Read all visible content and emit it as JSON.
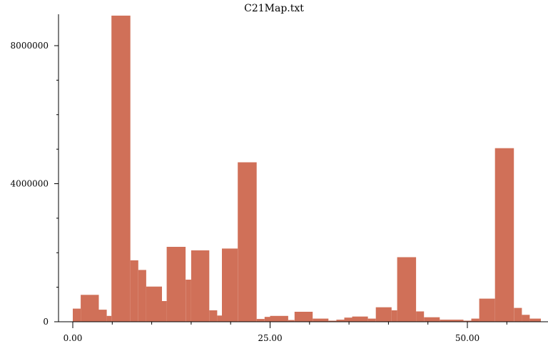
{
  "chart_data": {
    "type": "bar",
    "title": "C21Map.txt",
    "xlabel": "",
    "ylabel": "",
    "xlim": [
      -1,
      59
    ],
    "ylim": [
      0,
      8900000
    ],
    "bar_color": "#d07058",
    "grid": false,
    "x_ticks": [
      {
        "value": 0,
        "label": "0.00"
      },
      {
        "value": 25,
        "label": "25.00"
      },
      {
        "value": 50,
        "label": "50.00"
      }
    ],
    "x_minor_ticks": [
      5,
      10,
      15,
      20,
      30,
      35,
      40,
      45,
      55
    ],
    "y_ticks": [
      {
        "value": 0,
        "label": "0"
      },
      {
        "value": 4000000,
        "label": "4000000"
      },
      {
        "value": 8000000,
        "label": "8000000"
      }
    ],
    "y_minor_ticks": [
      1000000,
      2000000,
      3000000,
      5000000,
      6000000,
      7000000
    ],
    "bars": [
      {
        "x0": 0,
        "x1": 1,
        "value": 380000
      },
      {
        "x0": 1,
        "x1": 3.3,
        "value": 780000
      },
      {
        "x0": 3.3,
        "x1": 4.3,
        "value": 350000
      },
      {
        "x0": 4.3,
        "x1": 4.9,
        "value": 170000
      },
      {
        "x0": 4.9,
        "x1": 7.3,
        "value": 8870000
      },
      {
        "x0": 7.3,
        "x1": 8.3,
        "value": 1780000
      },
      {
        "x0": 8.3,
        "x1": 9.3,
        "value": 1500000
      },
      {
        "x0": 9.3,
        "x1": 11.3,
        "value": 1020000
      },
      {
        "x0": 11.3,
        "x1": 11.9,
        "value": 600000
      },
      {
        "x0": 11.9,
        "x1": 14.3,
        "value": 2170000
      },
      {
        "x0": 14.3,
        "x1": 15.0,
        "value": 1220000
      },
      {
        "x0": 15.0,
        "x1": 17.3,
        "value": 2070000
      },
      {
        "x0": 17.3,
        "x1": 18.3,
        "value": 330000
      },
      {
        "x0": 18.3,
        "x1": 18.9,
        "value": 180000
      },
      {
        "x0": 18.9,
        "x1": 20.9,
        "value": 2120000
      },
      {
        "x0": 20.9,
        "x1": 23.3,
        "value": 4620000
      },
      {
        "x0": 23.3,
        "x1": 24.3,
        "value": 80000
      },
      {
        "x0": 24.3,
        "x1": 25.0,
        "value": 140000
      },
      {
        "x0": 25.0,
        "x1": 27.3,
        "value": 170000
      },
      {
        "x0": 27.3,
        "x1": 28.1,
        "value": 50000
      },
      {
        "x0": 28.1,
        "x1": 30.4,
        "value": 290000
      },
      {
        "x0": 30.4,
        "x1": 32.4,
        "value": 90000
      },
      {
        "x0": 32.4,
        "x1": 33.4,
        "value": 30000
      },
      {
        "x0": 33.4,
        "x1": 34.4,
        "value": 60000
      },
      {
        "x0": 34.4,
        "x1": 35.4,
        "value": 120000
      },
      {
        "x0": 35.4,
        "x1": 37.4,
        "value": 150000
      },
      {
        "x0": 37.4,
        "x1": 38.4,
        "value": 90000
      },
      {
        "x0": 38.4,
        "x1": 40.4,
        "value": 420000
      },
      {
        "x0": 40.4,
        "x1": 41.1,
        "value": 330000
      },
      {
        "x0": 41.1,
        "x1": 43.5,
        "value": 1870000
      },
      {
        "x0": 43.5,
        "x1": 44.5,
        "value": 300000
      },
      {
        "x0": 44.5,
        "x1": 46.5,
        "value": 130000
      },
      {
        "x0": 46.5,
        "x1": 49.5,
        "value": 60000
      },
      {
        "x0": 49.5,
        "x1": 50.5,
        "value": 30000
      },
      {
        "x0": 50.5,
        "x1": 51.5,
        "value": 90000
      },
      {
        "x0": 51.5,
        "x1": 53.5,
        "value": 670000
      },
      {
        "x0": 53.5,
        "x1": 55.9,
        "value": 5030000
      },
      {
        "x0": 55.9,
        "x1": 56.9,
        "value": 400000
      },
      {
        "x0": 56.9,
        "x1": 57.9,
        "value": 200000
      },
      {
        "x0": 57.9,
        "x1": 59.9,
        "value": 90000
      }
    ]
  }
}
